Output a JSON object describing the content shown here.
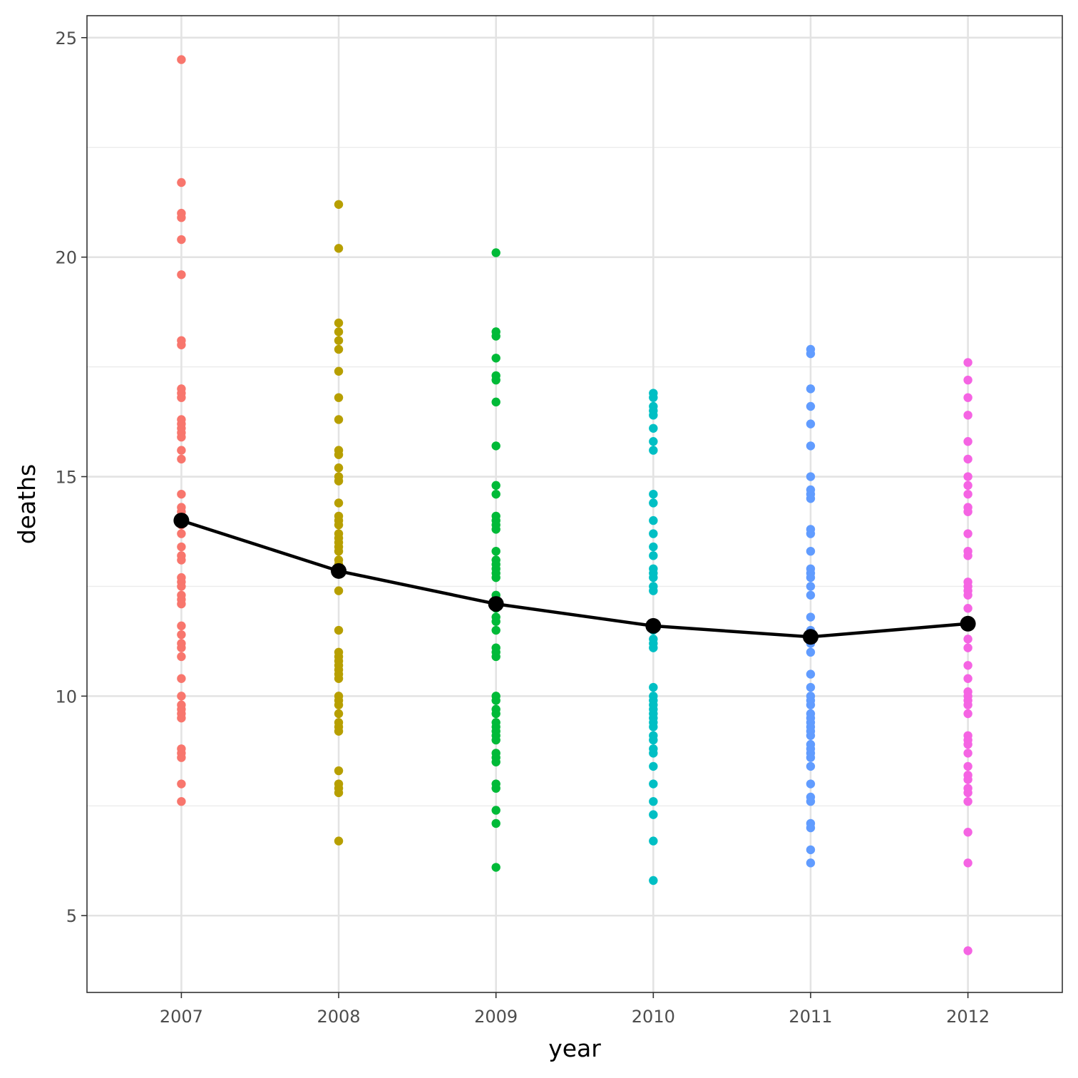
{
  "chart_data": {
    "type": "scatter",
    "title": "",
    "xlabel": "year",
    "ylabel": "deaths",
    "xlim": [
      2006.4,
      2012.6
    ],
    "ylim": [
      3.25,
      25.5
    ],
    "x_ticks": [
      2007,
      2008,
      2009,
      2010,
      2011,
      2012
    ],
    "y_ticks": [
      5,
      10,
      15,
      20,
      25
    ],
    "grid": true,
    "legend": "none",
    "series": [
      {
        "x": 2007,
        "color": "#F8766D",
        "values": [
          24.5,
          21.7,
          21.0,
          20.9,
          20.4,
          19.6,
          18.1,
          18.0,
          17.0,
          16.9,
          16.8,
          16.3,
          16.2,
          16.1,
          16.0,
          15.9,
          15.6,
          15.4,
          14.6,
          14.3,
          14.2,
          14.1,
          14.0,
          13.9,
          13.7,
          13.4,
          13.2,
          13.1,
          12.7,
          12.6,
          12.5,
          12.3,
          12.2,
          12.1,
          11.6,
          11.4,
          11.2,
          11.1,
          10.9,
          10.4,
          10.0,
          9.8,
          9.7,
          9.6,
          9.5,
          8.8,
          8.7,
          8.6,
          8.0,
          7.6
        ]
      },
      {
        "x": 2008,
        "color": "#B79F00",
        "values": [
          21.2,
          20.2,
          18.5,
          18.3,
          18.1,
          17.9,
          17.4,
          16.8,
          16.3,
          15.6,
          15.5,
          15.2,
          15.0,
          14.9,
          14.4,
          14.1,
          14.0,
          13.9,
          13.7,
          13.6,
          13.5,
          13.4,
          13.3,
          13.1,
          13.0,
          12.9,
          12.8,
          12.4,
          11.5,
          11.0,
          10.9,
          10.8,
          10.7,
          10.6,
          10.5,
          10.4,
          10.0,
          9.9,
          9.8,
          9.6,
          9.4,
          9.3,
          9.2,
          8.3,
          8.0,
          7.9,
          7.8,
          6.7
        ]
      },
      {
        "x": 2009,
        "color": "#00BA38",
        "values": [
          20.1,
          18.3,
          18.2,
          17.7,
          17.3,
          17.2,
          16.7,
          15.7,
          14.8,
          14.6,
          14.1,
          14.0,
          13.9,
          13.8,
          13.3,
          13.1,
          13.0,
          12.9,
          12.8,
          12.7,
          12.3,
          12.1,
          12.0,
          11.8,
          11.7,
          11.5,
          11.1,
          11.0,
          10.9,
          10.0,
          9.9,
          9.7,
          9.6,
          9.4,
          9.3,
          9.2,
          9.1,
          9.0,
          8.7,
          8.6,
          8.5,
          8.0,
          7.9,
          7.4,
          7.1,
          6.1
        ]
      },
      {
        "x": 2010,
        "color": "#00BFC4",
        "values": [
          16.9,
          16.8,
          16.6,
          16.5,
          16.4,
          16.1,
          15.8,
          15.6,
          14.6,
          14.4,
          14.0,
          13.7,
          13.4,
          13.2,
          12.9,
          12.8,
          12.7,
          12.5,
          12.4,
          11.6,
          11.5,
          11.3,
          11.2,
          11.1,
          10.2,
          10.0,
          9.9,
          9.8,
          9.7,
          9.6,
          9.5,
          9.4,
          9.3,
          9.1,
          9.0,
          8.8,
          8.7,
          8.4,
          8.0,
          7.6,
          7.3,
          6.7,
          5.8
        ]
      },
      {
        "x": 2011,
        "color": "#619CFF",
        "values": [
          17.9,
          17.8,
          17.0,
          16.6,
          16.2,
          15.7,
          15.0,
          14.7,
          14.6,
          14.5,
          13.8,
          13.7,
          13.3,
          12.9,
          12.8,
          12.7,
          12.5,
          12.3,
          11.8,
          11.5,
          11.3,
          11.2,
          11.0,
          10.5,
          10.2,
          10.0,
          9.9,
          9.8,
          9.6,
          9.5,
          9.4,
          9.3,
          9.2,
          9.1,
          8.9,
          8.8,
          8.7,
          8.6,
          8.4,
          8.0,
          7.7,
          7.6,
          7.1,
          7.0,
          6.5,
          6.2
        ]
      },
      {
        "x": 2012,
        "color": "#F564E3",
        "values": [
          17.6,
          17.2,
          16.8,
          16.4,
          15.8,
          15.4,
          15.0,
          14.8,
          14.6,
          14.3,
          14.2,
          13.7,
          13.3,
          13.2,
          12.6,
          12.5,
          12.4,
          12.3,
          12.0,
          11.7,
          11.3,
          11.1,
          10.7,
          10.4,
          10.1,
          10.0,
          9.9,
          9.8,
          9.6,
          9.1,
          9.0,
          8.9,
          8.7,
          8.4,
          8.2,
          8.1,
          7.9,
          7.8,
          7.6,
          6.9,
          6.2,
          4.2
        ]
      },
      {
        "name": "",
        "kind": "mean-line",
        "color": "#000000",
        "x": [
          2007,
          2008,
          2009,
          2010,
          2011,
          2012
        ],
        "values": [
          14.0,
          12.85,
          12.1,
          11.6,
          11.35,
          11.65
        ]
      }
    ]
  }
}
